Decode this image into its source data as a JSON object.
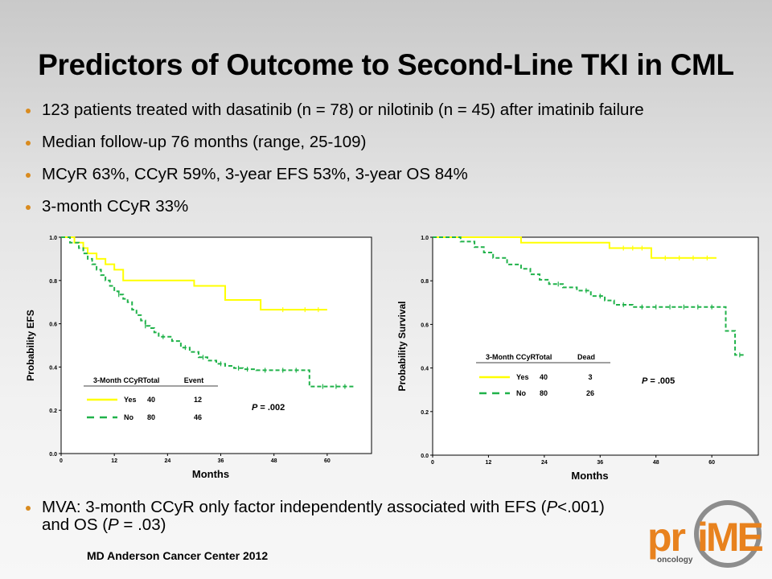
{
  "slide": {
    "title": "Predictors of Outcome to Second-Line TKI in CML",
    "bullets": [
      "123 patients treated with dasatinib (n = 78) or nilotinib (n = 45) after imatinib failure",
      "Median follow-up 76 months (range, 25-109)",
      "MCyR 63%, CCyR 59%, 3-year EFS 53%, 3-year OS 84%",
      "3-month CCyR 33%"
    ],
    "mva": {
      "prefix": "MVA:  3-month CCyR only factor independently associated with EFS (",
      "p1_italic": "P",
      "p1_rest": "<.001)",
      "line2_prefix": "and OS (",
      "p2_italic": "P",
      "p2_rest": " = .03)"
    },
    "footer": "MD Anderson Cancer Center 2012",
    "logo": {
      "part1": "pr",
      "part2": "iME",
      "sub": "oncology"
    }
  },
  "colors": {
    "yes": "#ffff00",
    "no": "#20b24a",
    "bullet": "#d98b1f",
    "logo": "#e8821e"
  },
  "chart_data": [
    {
      "type": "line",
      "xlabel": "Months",
      "ylabel": "Probability EFS",
      "xticks": [
        0,
        12,
        24,
        36,
        48,
        60
      ],
      "yticks": [
        "0.0",
        "0.2",
        "0.4",
        "0.6",
        "0.8",
        "1.0"
      ],
      "xlim": [
        0,
        70
      ],
      "ylim": [
        0,
        1
      ],
      "step": true,
      "series": [
        {
          "name": "Yes",
          "total": "40",
          "events": "12",
          "x": [
            0,
            3,
            5,
            6,
            8,
            10,
            12,
            14,
            30,
            37,
            45,
            60
          ],
          "y": [
            1.0,
            0.975,
            0.95,
            0.925,
            0.9,
            0.875,
            0.85,
            0.8,
            0.775,
            0.71,
            0.665,
            0.665
          ],
          "censor": [
            50,
            55,
            58
          ]
        },
        {
          "name": "No",
          "total": "80",
          "events": "46",
          "x": [
            0,
            2,
            4,
            5,
            6,
            7,
            8,
            9,
            10,
            11,
            12,
            13,
            14,
            15,
            16,
            17,
            18,
            19,
            20,
            21,
            22,
            25,
            27,
            29,
            31,
            33,
            35,
            37,
            39,
            41,
            44,
            56,
            66
          ],
          "y": [
            1.0,
            0.975,
            0.95,
            0.925,
            0.9,
            0.875,
            0.85,
            0.825,
            0.8,
            0.775,
            0.75,
            0.735,
            0.715,
            0.7,
            0.665,
            0.64,
            0.615,
            0.59,
            0.58,
            0.56,
            0.54,
            0.52,
            0.49,
            0.47,
            0.445,
            0.43,
            0.415,
            0.405,
            0.395,
            0.39,
            0.385,
            0.31,
            0.31
          ],
          "censor": [
            13,
            19,
            23,
            28,
            32,
            36,
            40,
            42,
            46,
            50,
            53,
            59,
            62,
            64
          ]
        }
      ],
      "legend": {
        "header": [
          "3-Month CCyR",
          "Total",
          "Event"
        ]
      },
      "pvalue": "P = .002"
    },
    {
      "type": "line",
      "xlabel": "Months",
      "ylabel": "Probability Survival",
      "xticks": [
        0,
        12,
        24,
        36,
        48,
        60
      ],
      "yticks": [
        "0.0",
        "0.2",
        "0.4",
        "0.6",
        "0.8",
        "1.0"
      ],
      "xlim": [
        0,
        70
      ],
      "ylim": [
        0,
        1
      ],
      "step": true,
      "series": [
        {
          "name": "Yes",
          "total": "40",
          "dead": "3",
          "x": [
            0,
            19,
            38,
            47,
            61
          ],
          "y": [
            1.0,
            0.975,
            0.95,
            0.905,
            0.905
          ],
          "censor": [
            41,
            43,
            45,
            50,
            53,
            56,
            59
          ]
        },
        {
          "name": "No",
          "total": "80",
          "dead": "26",
          "x": [
            0,
            6,
            9,
            11,
            13,
            16,
            19,
            21,
            23,
            25,
            28,
            31,
            34,
            37,
            39,
            43,
            63,
            65,
            67
          ],
          "y": [
            1.0,
            0.98,
            0.955,
            0.93,
            0.905,
            0.875,
            0.855,
            0.83,
            0.805,
            0.785,
            0.77,
            0.755,
            0.73,
            0.71,
            0.69,
            0.68,
            0.57,
            0.46,
            0.46
          ],
          "censor": [
            27,
            33,
            36,
            41,
            45,
            48,
            51,
            54,
            57,
            60,
            66
          ]
        }
      ],
      "legend": {
        "header": [
          "3-Month CCyR",
          "Total",
          "Dead"
        ]
      },
      "pvalue": "P = .005"
    }
  ]
}
